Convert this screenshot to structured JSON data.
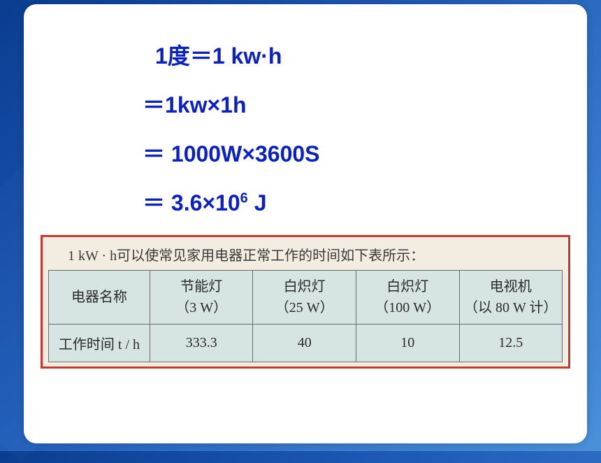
{
  "formula": {
    "line1_prefix": "1度",
    "line1_eq": "＝",
    "line1_rest": "1 kw·h",
    "line2_eq": "＝",
    "line2_rest": "1kw×1h",
    "line3_eq": "＝",
    "line3_rest_a": " 1000W×3600S",
    "line4_eq": "＝",
    "line4_a": " 3.6×10",
    "line4_sup": "6",
    "line4_b": " J"
  },
  "table": {
    "caption": "1 kW · h可以使常见家用电器正常工作的时间如下表所示：",
    "row_header_label": "电器名称",
    "columns": [
      {
        "name": "节能灯",
        "power": "（3 W）"
      },
      {
        "name": "白炽灯",
        "power": "（25 W）"
      },
      {
        "name": "白炽灯",
        "power": "（100 W）"
      },
      {
        "name": "电视机",
        "power": "（以 80 W 计）"
      }
    ],
    "time_row_label": "工作时间 t / h",
    "time_values": [
      "333.3",
      "40",
      "10",
      "12.5"
    ],
    "colors": {
      "border": "#c9382e",
      "background": "#f3ece0",
      "cell_bg": "#d6e4e3",
      "text": "#2a2a2a",
      "formula_text": "#0a1fc4"
    }
  }
}
